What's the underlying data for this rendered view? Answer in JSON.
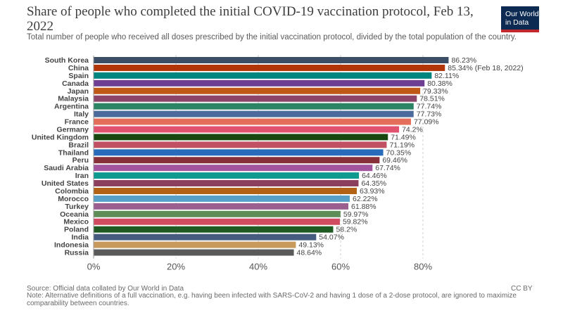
{
  "title": "Share of people who completed the initial COVID-19 vaccination protocol, Feb 13, 2022",
  "subtitle": "Total number of people who received all doses prescribed by the initial vaccination protocol, divided by the total population of the country.",
  "logo": {
    "line1": "Our World",
    "line2": "in Data"
  },
  "source": "Source: Official data collated by Our World in Data",
  "note": "Note: Alternative definitions of a full vaccination, e.g. having been infected with SARS-CoV-2 and having 1 dose of a 2-dose protocol, are ignored to maximize comparability between countries.",
  "license": "CC BY",
  "chart_data": {
    "type": "bar",
    "orientation": "horizontal",
    "xlim": [
      0,
      90
    ],
    "ticks": [
      0,
      20,
      40,
      60,
      80
    ],
    "tick_labels": [
      "0%",
      "20%",
      "40%",
      "60%",
      "80%"
    ],
    "grid": true,
    "categories": [
      "South Korea",
      "China",
      "Spain",
      "Canada",
      "Japan",
      "Malaysia",
      "Argentina",
      "Italy",
      "France",
      "Germany",
      "United Kingdom",
      "Brazil",
      "Thailand",
      "Peru",
      "Saudi Arabia",
      "Iran",
      "United States",
      "Colombia",
      "Morocco",
      "Turkey",
      "Oceania",
      "Mexico",
      "Poland",
      "India",
      "Indonesia",
      "Russia"
    ],
    "values": [
      86.23,
      85.34,
      82.11,
      80.38,
      79.33,
      78.51,
      77.74,
      77.73,
      77.09,
      74.2,
      71.49,
      71.19,
      70.35,
      69.46,
      67.74,
      64.46,
      64.35,
      63.93,
      62.22,
      61.88,
      59.97,
      59.82,
      58.2,
      54.07,
      49.13,
      48.64
    ],
    "value_labels": [
      "86.23%",
      "85.34% (Feb 18, 2022)",
      "82.11%",
      "80.38%",
      "79.33%",
      "78.51%",
      "77.74%",
      "77.73%",
      "77.09%",
      "74.2%",
      "71.49%",
      "71.19%",
      "70.35%",
      "69.46%",
      "67.74%",
      "64.46%",
      "64.35%",
      "63.93%",
      "62.22%",
      "61.88%",
      "59.97%",
      "59.82%",
      "58.2%",
      "54.07%",
      "49.13%",
      "48.64%"
    ],
    "colors": [
      "#3c4e66",
      "#b13507",
      "#00847e",
      "#6d3e91",
      "#c05917",
      "#8c4569",
      "#2c8465",
      "#4c6a9c",
      "#e56e5a",
      "#e0526e",
      "#18470f",
      "#c15065",
      "#286bbb",
      "#883039",
      "#a2559c",
      "#0e9a8e",
      "#8b3f5d",
      "#b16214",
      "#58a0c8",
      "#9a5f8f",
      "#5f8d57",
      "#d04b5f",
      "#1f5a23",
      "#465b80",
      "#c89a5b",
      "#5a5a5a"
    ]
  }
}
